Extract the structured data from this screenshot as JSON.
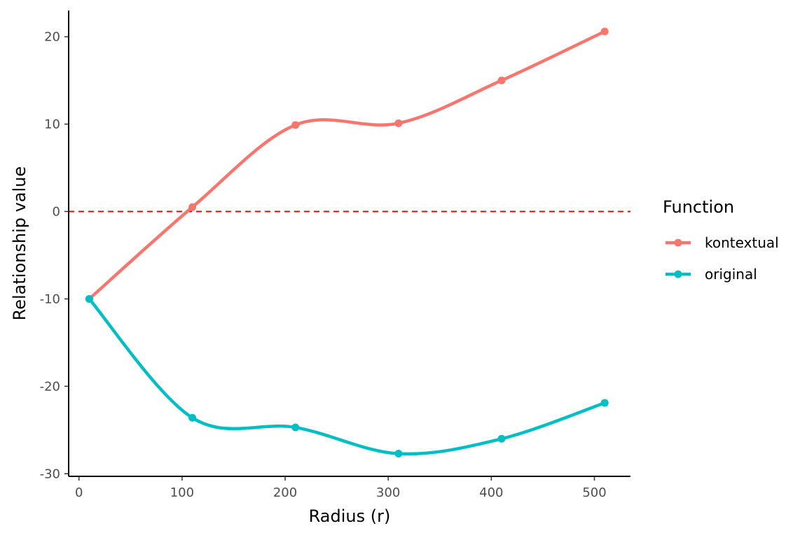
{
  "chart_data": {
    "type": "line",
    "title": "",
    "xlabel": "Radius (r)",
    "ylabel": "Relationship value",
    "xlim": [
      -10,
      535
    ],
    "ylim": [
      -30.3,
      23
    ],
    "xticks": [
      0,
      100,
      200,
      300,
      400,
      500
    ],
    "yticks": [
      20,
      10,
      0,
      -10,
      -20,
      -30
    ],
    "xtick_labels": [
      "0",
      "100",
      "200",
      "300",
      "400",
      "500"
    ],
    "ytick_labels": [
      "20",
      "10",
      "0",
      "-10",
      "-20",
      "-30"
    ],
    "grid": false,
    "reference_line": {
      "y": 0,
      "style": "dashed",
      "color": "#ff0000"
    },
    "legend": {
      "title": "Function",
      "placement": "right"
    },
    "series": [
      {
        "name": "kontextual",
        "color": "#f8766d",
        "x": [
          10,
          110,
          210,
          310,
          410,
          510
        ],
        "y": [
          -10.0,
          0.5,
          9.9,
          10.1,
          15.0,
          20.6
        ]
      },
      {
        "name": "original",
        "color": "#00bfc4",
        "x": [
          10,
          110,
          210,
          310,
          410,
          510
        ],
        "y": [
          -10.0,
          -23.6,
          -24.7,
          -27.7,
          -26.0,
          -21.9
        ]
      }
    ]
  }
}
